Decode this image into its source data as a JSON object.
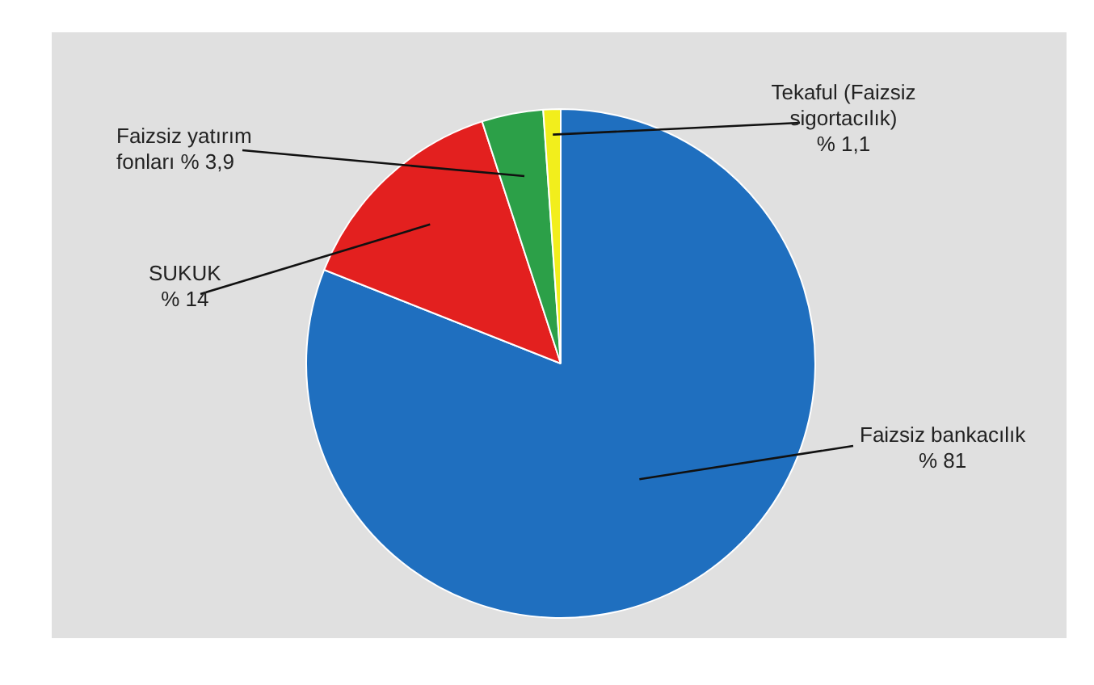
{
  "chart_data": {
    "type": "pie",
    "categories": [
      "Faizsiz bankacılık",
      "SUKUK",
      "Faizsiz yatırım fonları",
      "Tekaful (Faizsiz sigortacılık)"
    ],
    "values": [
      81,
      14,
      3.9,
      1.1
    ],
    "value_labels": [
      "% 81",
      "% 14",
      "% 3,9",
      "% 1,1"
    ],
    "colors": [
      "#1f6fbf",
      "#e3201f",
      "#2ca048",
      "#f2ee1c"
    ],
    "legend": false
  }
}
